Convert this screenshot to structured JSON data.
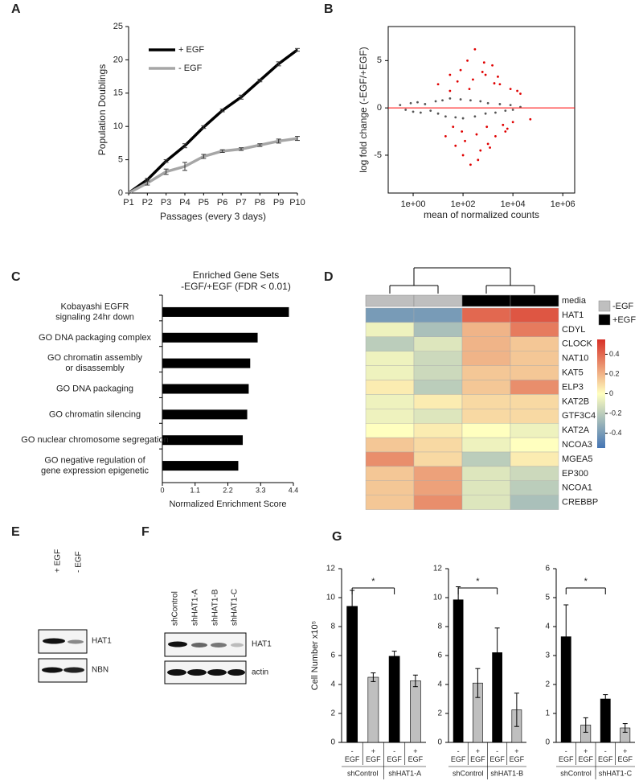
{
  "chart_data": [
    {
      "panel": "A",
      "type": "line",
      "categories": [
        "P1",
        "P2",
        "P3",
        "P4",
        "P5",
        "P6",
        "P7",
        "P8",
        "P9",
        "P10"
      ],
      "xlabel": "Passages (every 3 days)",
      "ylabel": "Population Doublings",
      "ylim": [
        0,
        25
      ],
      "yticks": [
        0,
        5,
        10,
        15,
        20,
        25
      ],
      "legend": "upper left",
      "series": [
        {
          "name": "+ EGF",
          "color": "#000000",
          "values": [
            0,
            2,
            4.8,
            7.1,
            9.9,
            12.4,
            14.4,
            16.9,
            19.4,
            21.5
          ],
          "errors": [
            0,
            0.2,
            0.2,
            0.3,
            0.2,
            0.2,
            0.3,
            0.2,
            0.3,
            0.2
          ]
        },
        {
          "name": "- EGF",
          "color": "#a6a6a6",
          "values": [
            0,
            1.5,
            3.2,
            4,
            5.5,
            6.3,
            6.6,
            7.2,
            7.8,
            8.2
          ],
          "errors": [
            0,
            0.3,
            0.4,
            0.6,
            0.3,
            0.2,
            0.2,
            0.2,
            0.3,
            0.3
          ]
        }
      ]
    },
    {
      "panel": "B",
      "type": "scatter",
      "xlabel": "mean of normalized counts",
      "ylabel": "log fold change (-EGF/+EGF)",
      "xlog": true,
      "xlim": [
        0.1,
        3000000
      ],
      "xticks": [
        {
          "value": 1,
          "label": "1e+00"
        },
        {
          "value": 100,
          "label": "1e+02"
        },
        {
          "value": 10000,
          "label": "1e+04"
        },
        {
          "value": 1000000,
          "label": "1e+06"
        }
      ],
      "ylim": [
        -9,
        8.6
      ],
      "yticks": [
        -5,
        0,
        5
      ],
      "hline": {
        "y": 0,
        "color": "#ff0000"
      },
      "series": [
        {
          "color": "#555555",
          "x": [
            0.3,
            0.5,
            0.8,
            1,
            1.5,
            2,
            3,
            5,
            8,
            10,
            15,
            20,
            30,
            50,
            80,
            100,
            200,
            300,
            500,
            800,
            1000,
            2000,
            3000,
            5000,
            8000,
            10000,
            20000
          ],
          "values": [
            0.3,
            -0.2,
            0.5,
            -0.4,
            0.6,
            -0.5,
            0.4,
            -0.3,
            0.7,
            -0.6,
            0.8,
            -0.9,
            1,
            -1,
            0.9,
            -1.1,
            0.8,
            -0.9,
            0.7,
            -0.6,
            0.5,
            -0.5,
            0.4,
            -0.3,
            0.3,
            -0.2,
            0.1
          ]
        },
        {
          "color": "#e00000",
          "x": [
            10,
            20,
            30,
            50,
            80,
            100,
            150,
            200,
            300,
            500,
            800,
            1000,
            1500,
            2000,
            3000,
            5000,
            8000,
            10000,
            20000,
            50000,
            40,
            60,
            120,
            250,
            400,
            700,
            1200,
            2500,
            6000,
            15000,
            30,
            90,
            180,
            350,
            600,
            900,
            1800,
            4000
          ],
          "values": [
            2.5,
            -3,
            3.5,
            -4,
            4,
            -5,
            5,
            -6,
            6.2,
            -4.5,
            3.5,
            -3.8,
            4.5,
            -3,
            2.5,
            -2.5,
            2,
            -1.5,
            1.5,
            -1.2,
            -2,
            2.8,
            -3.5,
            3,
            -5.5,
            4.8,
            -4.2,
            3.3,
            -2.2,
            1.8,
            1.8,
            -2.5,
            2,
            -2.8,
            3.8,
            -2,
            2.6,
            -1.8
          ]
        }
      ]
    },
    {
      "panel": "C",
      "type": "barh",
      "title": "Enriched Gene Sets",
      "subtitle": "-EGF/+EGF (FDR < 0.01)",
      "xlabel": "Normalized Enrichment Score",
      "color": "#000000",
      "categories": [
        [
          "Kobayashi EGFR",
          "signaling 24hr down"
        ],
        [
          "GO DNA packaging complex"
        ],
        [
          "GO chromatin assembly",
          "or disassembly"
        ],
        [
          "GO DNA packaging"
        ],
        [
          "GO chromatin silencing"
        ],
        [
          "GO nuclear chromosome segregation"
        ],
        [
          "GO negative regulation of",
          "gene expression epigenetic"
        ]
      ],
      "values": [
        4.25,
        3.2,
        2.95,
        2.9,
        2.85,
        2.7,
        2.55
      ],
      "xlim": [
        0,
        4.4
      ],
      "xticks": [
        0,
        1.1,
        2.2,
        3.3,
        4.4
      ]
    },
    {
      "panel": "D",
      "type": "heatmap",
      "media": "media",
      "column_colors": [
        "#bfbfbf",
        "#bfbfbf",
        "#000000",
        "#000000"
      ],
      "media_legend": [
        {
          "name": "-EGF",
          "color": "#bfbfbf"
        },
        {
          "name": "+EGF",
          "color": "#000000"
        }
      ],
      "rows": [
        "HAT1",
        "CDYL",
        "CLOCK",
        "NAT10",
        "KAT5",
        "ELP3",
        "KAT2B",
        "GTF3C4",
        "KAT2A",
        "NCOA3",
        "MGEA5",
        "EP300",
        "NCOA1",
        "CREBBP"
      ],
      "values": [
        [
          -0.4,
          -0.4,
          0.4,
          0.45
        ],
        [
          -0.05,
          -0.25,
          0.2,
          0.35
        ],
        [
          -0.2,
          -0.1,
          0.2,
          0.15
        ],
        [
          -0.05,
          -0.15,
          0.2,
          0.15
        ],
        [
          -0.05,
          -0.15,
          0.15,
          0.15
        ],
        [
          0.05,
          -0.2,
          0.15,
          0.3
        ],
        [
          -0.05,
          0.05,
          0.1,
          0.1
        ],
        [
          -0.05,
          -0.1,
          0.1,
          0.1
        ],
        [
          0,
          0.05,
          0,
          -0.05
        ],
        [
          0.15,
          0.1,
          -0.05,
          0
        ],
        [
          0.3,
          0.1,
          -0.2,
          0.05
        ],
        [
          0.15,
          0.25,
          -0.1,
          -0.15
        ],
        [
          0.15,
          0.25,
          -0.1,
          -0.2
        ],
        [
          0.15,
          0.3,
          -0.1,
          -0.25
        ]
      ],
      "colormap": [
        "#4575b4",
        "#ffffbf",
        "#d73027"
      ],
      "zlim": [
        -0.55,
        0.55
      ],
      "colorbar_ticks": [
        0.4,
        0.2,
        0,
        -0.2,
        -0.4
      ]
    },
    {
      "panel": "G",
      "type": "bar",
      "ylabel": "Cell Number x10⁵",
      "categories": [
        [
          "-",
          "EGF"
        ],
        [
          "+",
          "EGF"
        ],
        [
          "-",
          "EGF"
        ],
        [
          "+",
          "EGF"
        ]
      ],
      "groups": [
        "shControl",
        "shHAT1-A"
      ],
      "colors": [
        "#000000",
        "#bfbfbf",
        "#000000",
        "#bfbfbf"
      ],
      "values": [
        9.4,
        4.5,
        5.95,
        4.25
      ],
      "errors": [
        1.1,
        0.3,
        0.35,
        0.4
      ],
      "ylim": [
        0,
        12
      ],
      "yticks": [
        0,
        2,
        4,
        6,
        8,
        10,
        12
      ],
      "significance": {
        "between": [
          0,
          2
        ],
        "label": "*"
      }
    },
    {
      "type": "bar",
      "categories": [
        [
          "-",
          "EGF"
        ],
        [
          "+",
          "EGF"
        ],
        [
          "-",
          "EGF"
        ],
        [
          "+",
          "EGF"
        ]
      ],
      "groups": [
        "shControl",
        "shHAT1-B"
      ],
      "colors": [
        "#000000",
        "#bfbfbf",
        "#000000",
        "#bfbfbf"
      ],
      "values": [
        9.85,
        4.1,
        6.2,
        2.25
      ],
      "errors": [
        0.9,
        1.0,
        1.7,
        1.15
      ],
      "ylim": [
        0,
        12
      ],
      "yticks": [
        0,
        2,
        4,
        6,
        8,
        10,
        12
      ],
      "significance": {
        "between": [
          0,
          2
        ],
        "label": "*"
      }
    },
    {
      "type": "bar",
      "categories": [
        [
          "-",
          "EGF"
        ],
        [
          "+",
          "EGF"
        ],
        [
          "-",
          "EGF"
        ],
        [
          "+",
          "EGF"
        ]
      ],
      "groups": [
        "shControl",
        "shHAT1-C"
      ],
      "colors": [
        "#000000",
        "#bfbfbf",
        "#000000",
        "#bfbfbf"
      ],
      "values": [
        3.65,
        0.6,
        1.5,
        0.5
      ],
      "errors": [
        1.1,
        0.25,
        0.15,
        0.15
      ],
      "ylim": [
        0,
        6
      ],
      "yticks": [
        0,
        1,
        2,
        3,
        4,
        5,
        6
      ],
      "significance": {
        "between": [
          0,
          2
        ],
        "label": "*"
      }
    }
  ],
  "blots": [
    {
      "panel": "E",
      "lanes": [
        "+ EGF",
        "- EGF"
      ],
      "bands": [
        "HAT1",
        "NBN"
      ]
    },
    {
      "panel": "F",
      "lanes": [
        "shControl",
        "shHAT1-A",
        "shHAT1-B",
        "shHAT1-C"
      ],
      "bands": [
        "HAT1",
        "actin"
      ]
    }
  ]
}
